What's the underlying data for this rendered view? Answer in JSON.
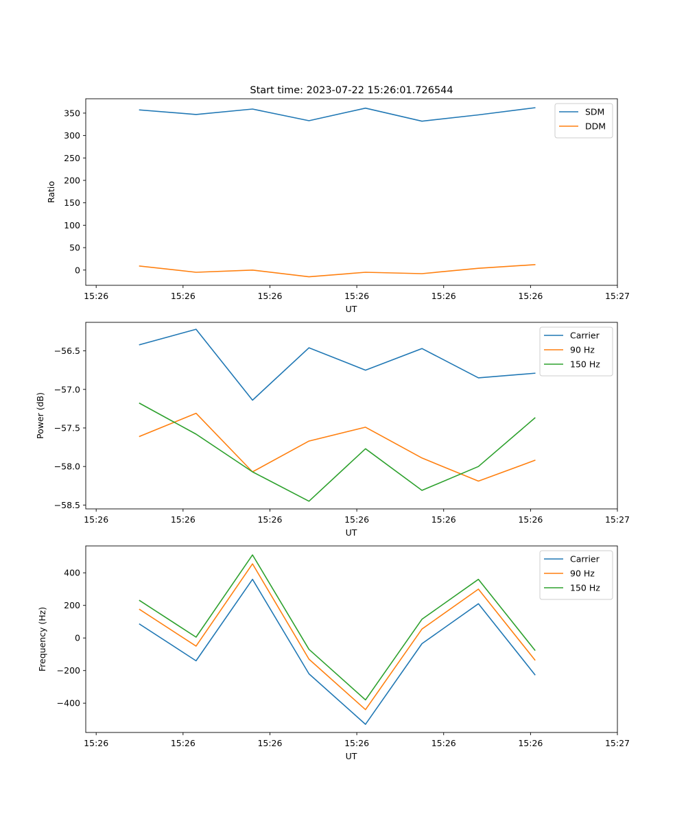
{
  "figure": {
    "title": "Start time: 2023-07-22 15:26:01.726544"
  },
  "colors": {
    "blue": "#1f77b4",
    "orange": "#ff7f0e",
    "green": "#2ca02c"
  },
  "chart_data": [
    {
      "type": "line",
      "title": "",
      "xlabel": "UT",
      "ylabel": "Ratio",
      "x_ticks": [
        0,
        1,
        2,
        3,
        4,
        5,
        6
      ],
      "x_tick_labels": [
        "15:26",
        "15:26",
        "15:26",
        "15:26",
        "15:26",
        "15:26",
        "15:27"
      ],
      "xlim": [
        -0.12,
        6.0
      ],
      "y_ticks": [
        0,
        50,
        100,
        150,
        200,
        250,
        300,
        350
      ],
      "y_tick_labels": [
        "0",
        "50",
        "100",
        "150",
        "200",
        "250",
        "300",
        "350"
      ],
      "ylim": [
        -34,
        382
      ],
      "x": [
        0.5,
        1.15,
        1.8,
        2.45,
        3.1,
        3.75,
        4.4,
        5.05
      ],
      "series": [
        {
          "name": "SDM",
          "color": "#1f77b4",
          "values": [
            357,
            347,
            359,
            333,
            361,
            332,
            346,
            362
          ]
        },
        {
          "name": "DDM",
          "color": "#ff7f0e",
          "values": [
            9,
            -5,
            0,
            -15,
            -5,
            -8,
            4,
            12
          ]
        }
      ],
      "legend": "top-right"
    },
    {
      "type": "line",
      "title": "",
      "xlabel": "UT",
      "ylabel": "Power (dB)",
      "x_ticks": [
        0,
        1,
        2,
        3,
        4,
        5,
        6
      ],
      "x_tick_labels": [
        "15:26",
        "15:26",
        "15:26",
        "15:26",
        "15:26",
        "15:26",
        "15:27"
      ],
      "xlim": [
        -0.12,
        6.0
      ],
      "y_ticks": [
        -58.5,
        -58.0,
        -57.5,
        -57.0,
        -56.5
      ],
      "y_tick_labels": [
        "−58.5",
        "−58.0",
        "−57.5",
        "−57.0",
        "−56.5"
      ],
      "ylim": [
        -58.55,
        -56.13
      ],
      "x": [
        0.5,
        1.15,
        1.8,
        2.45,
        3.1,
        3.75,
        4.4,
        5.05
      ],
      "series": [
        {
          "name": "Carrier",
          "color": "#1f77b4",
          "values": [
            -56.42,
            -56.22,
            -57.14,
            -56.46,
            -56.75,
            -56.47,
            -56.85,
            -56.79
          ]
        },
        {
          "name": "90 Hz",
          "color": "#ff7f0e",
          "values": [
            -57.61,
            -57.31,
            -58.07,
            -57.67,
            -57.49,
            -57.89,
            -58.19,
            -57.92
          ]
        },
        {
          "name": "150 Hz",
          "color": "#2ca02c",
          "values": [
            -57.18,
            -57.58,
            -58.07,
            -58.45,
            -57.77,
            -58.31,
            -58.0,
            -57.37
          ]
        }
      ],
      "legend": "top-right"
    },
    {
      "type": "line",
      "title": "",
      "xlabel": "UT",
      "ylabel": "Frequency (Hz)",
      "x_ticks": [
        0,
        1,
        2,
        3,
        4,
        5,
        6
      ],
      "x_tick_labels": [
        "15:26",
        "15:26",
        "15:26",
        "15:26",
        "15:26",
        "15:26",
        "15:27"
      ],
      "xlim": [
        -0.12,
        6.0
      ],
      "y_ticks": [
        -400,
        -200,
        0,
        200,
        400
      ],
      "y_tick_labels": [
        "−400",
        "−200",
        "0",
        "200",
        "400"
      ],
      "ylim": [
        -580,
        565
      ],
      "x": [
        0.5,
        1.15,
        1.8,
        2.45,
        3.1,
        3.75,
        4.4,
        5.05
      ],
      "series": [
        {
          "name": "Carrier",
          "color": "#1f77b4",
          "values": [
            85,
            -140,
            360,
            -220,
            -530,
            -35,
            210,
            -225
          ]
        },
        {
          "name": "90 Hz",
          "color": "#ff7f0e",
          "values": [
            175,
            -50,
            455,
            -130,
            -440,
            55,
            300,
            -135
          ]
        },
        {
          "name": "150 Hz",
          "color": "#2ca02c",
          "values": [
            230,
            5,
            510,
            -70,
            -380,
            115,
            360,
            -75
          ]
        }
      ],
      "legend": "top-right"
    }
  ]
}
